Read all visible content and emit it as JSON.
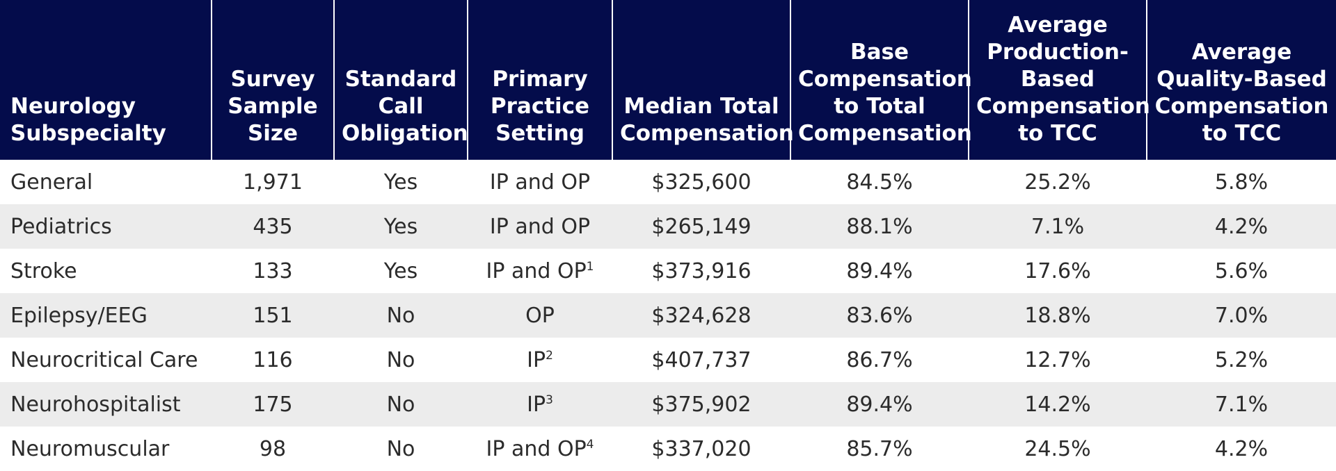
{
  "chart_data": {
    "type": "table",
    "columns": [
      "Neurology Subspecialty",
      "Survey Sample Size",
      "Standard Call Obligation",
      "Primary Practice Setting",
      "Median Total Compensation",
      "Base Compensation to Total Compensation",
      "Average Production-Based Compensation to TCC",
      "Average Quality-Based Compensation to TCC"
    ],
    "rows": [
      {
        "subspecialty": "General",
        "sample_size": "1,971",
        "call": "Yes",
        "setting": "IP and OP",
        "setting_note": "",
        "median_tcc": "$325,600",
        "base_ratio": "84.5%",
        "production": "25.2%",
        "quality": "5.8%"
      },
      {
        "subspecialty": "Pediatrics",
        "sample_size": "435",
        "call": "Yes",
        "setting": "IP and OP",
        "setting_note": "",
        "median_tcc": "$265,149",
        "base_ratio": "88.1%",
        "production": "7.1%",
        "quality": "4.2%"
      },
      {
        "subspecialty": "Stroke",
        "sample_size": "133",
        "call": "Yes",
        "setting": "IP and OP",
        "setting_note": "1",
        "median_tcc": "$373,916",
        "base_ratio": "89.4%",
        "production": "17.6%",
        "quality": "5.6%"
      },
      {
        "subspecialty": "Epilepsy/EEG",
        "sample_size": "151",
        "call": "No",
        "setting": "OP",
        "setting_note": "",
        "median_tcc": "$324,628",
        "base_ratio": "83.6%",
        "production": "18.8%",
        "quality": "7.0%"
      },
      {
        "subspecialty": "Neurocritical Care",
        "sample_size": "116",
        "call": "No",
        "setting": "IP",
        "setting_note": "2",
        "median_tcc": "$407,737",
        "base_ratio": "86.7%",
        "production": "12.7%",
        "quality": "5.2%"
      },
      {
        "subspecialty": "Neurohospitalist",
        "sample_size": "175",
        "call": "No",
        "setting": "IP",
        "setting_note": "3",
        "median_tcc": "$375,902",
        "base_ratio": "89.4%",
        "production": "14.2%",
        "quality": "7.1%"
      },
      {
        "subspecialty": "Neuromuscular",
        "sample_size": "98",
        "call": "No",
        "setting": "IP and OP",
        "setting_note": "4",
        "median_tcc": "$337,020",
        "base_ratio": "85.7%",
        "production": "24.5%",
        "quality": "4.2%"
      }
    ]
  },
  "colors": {
    "header_bg": "#040c4b",
    "header_text": "#ffffff",
    "stripe_bg": "#ececec",
    "body_text": "#2b2b2b"
  }
}
